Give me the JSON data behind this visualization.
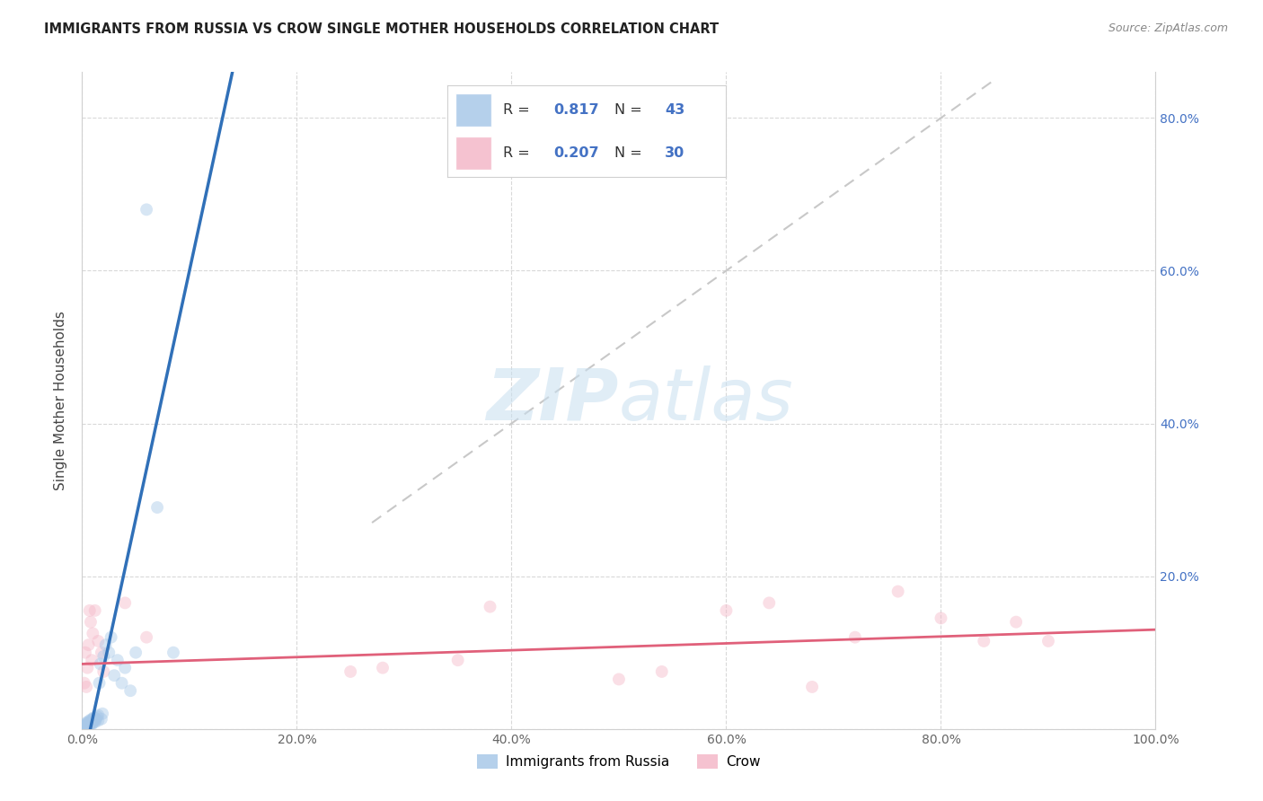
{
  "title": "IMMIGRANTS FROM RUSSIA VS CROW SINGLE MOTHER HOUSEHOLDS CORRELATION CHART",
  "source": "Source: ZipAtlas.com",
  "ylabel": "Single Mother Households",
  "legend_label1": "Immigrants from Russia",
  "legend_label2": "Crow",
  "r1": 0.817,
  "n1": 43,
  "r2": 0.207,
  "n2": 30,
  "color1": "#a8c8e8",
  "color2": "#f4b8c8",
  "line_color1": "#3070b8",
  "line_color2": "#e0607a",
  "diagonal_color": "#c8c8c8",
  "xlim": [
    0.0,
    1.0
  ],
  "ylim": [
    0.0,
    0.86
  ],
  "xticks": [
    0.0,
    0.2,
    0.4,
    0.6,
    0.8,
    1.0
  ],
  "yticks": [
    0.0,
    0.2,
    0.4,
    0.6,
    0.8
  ],
  "xticklabels": [
    "0.0%",
    "20.0%",
    "40.0%",
    "60.0%",
    "80.0%",
    "100.0%"
  ],
  "right_yticks": [
    0.2,
    0.4,
    0.6,
    0.8
  ],
  "right_yticklabels": [
    "20.0%",
    "40.0%",
    "60.0%",
    "80.0%"
  ],
  "blue_scatter_x": [
    0.001,
    0.002,
    0.003,
    0.003,
    0.004,
    0.004,
    0.005,
    0.005,
    0.006,
    0.006,
    0.007,
    0.007,
    0.008,
    0.008,
    0.009,
    0.009,
    0.01,
    0.01,
    0.011,
    0.011,
    0.012,
    0.012,
    0.013,
    0.014,
    0.015,
    0.015,
    0.016,
    0.017,
    0.018,
    0.019,
    0.02,
    0.022,
    0.025,
    0.027,
    0.03,
    0.033,
    0.037,
    0.04,
    0.045,
    0.05,
    0.06,
    0.07,
    0.085
  ],
  "blue_scatter_y": [
    0.002,
    0.004,
    0.003,
    0.006,
    0.005,
    0.008,
    0.004,
    0.007,
    0.006,
    0.01,
    0.005,
    0.009,
    0.007,
    0.012,
    0.006,
    0.011,
    0.008,
    0.013,
    0.01,
    0.015,
    0.009,
    0.014,
    0.012,
    0.016,
    0.011,
    0.018,
    0.06,
    0.085,
    0.013,
    0.02,
    0.095,
    0.11,
    0.1,
    0.12,
    0.07,
    0.09,
    0.06,
    0.08,
    0.05,
    0.1,
    0.68,
    0.29,
    0.1
  ],
  "pink_scatter_x": [
    0.002,
    0.003,
    0.004,
    0.005,
    0.006,
    0.007,
    0.008,
    0.009,
    0.01,
    0.012,
    0.015,
    0.018,
    0.02,
    0.04,
    0.06,
    0.25,
    0.28,
    0.35,
    0.38,
    0.5,
    0.54,
    0.6,
    0.64,
    0.68,
    0.72,
    0.76,
    0.8,
    0.84,
    0.87,
    0.9
  ],
  "pink_scatter_y": [
    0.06,
    0.1,
    0.055,
    0.08,
    0.11,
    0.155,
    0.14,
    0.09,
    0.125,
    0.155,
    0.115,
    0.1,
    0.075,
    0.165,
    0.12,
    0.075,
    0.08,
    0.09,
    0.16,
    0.065,
    0.075,
    0.155,
    0.165,
    0.055,
    0.12,
    0.18,
    0.145,
    0.115,
    0.14,
    0.115
  ],
  "blue_line_x": [
    0.0,
    0.14
  ],
  "blue_line_y": [
    -0.05,
    0.86
  ],
  "pink_line_x": [
    0.0,
    1.0
  ],
  "pink_line_y": [
    0.085,
    0.13
  ],
  "diag_line_x": [
    0.27,
    0.85
  ],
  "diag_line_y": [
    0.27,
    0.85
  ],
  "marker_size": 100,
  "marker_alpha": 0.45,
  "background_color": "#ffffff",
  "grid_color": "#d0d0d0",
  "title_color": "#222222",
  "source_color": "#888888",
  "tick_color": "#666666",
  "right_tick_color": "#4472c4",
  "ylabel_color": "#444444"
}
